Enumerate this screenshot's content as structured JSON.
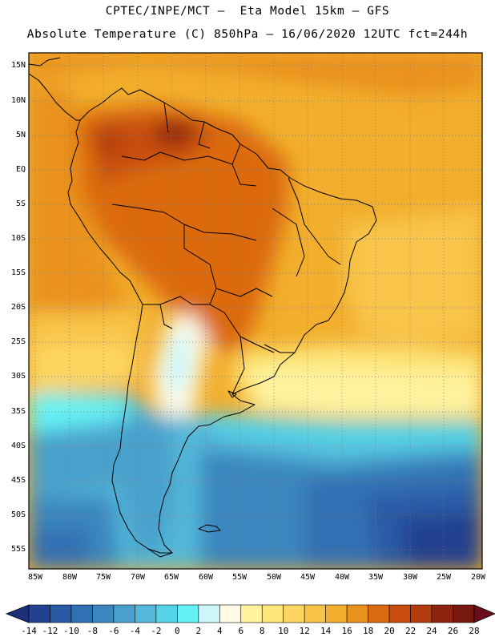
{
  "header": {
    "line1": "CPTEC/INPE/MCT –  Eta Model 15km – GFS",
    "line2": "Absolute Temperature (C) 850hPa – 16/06/2020 12UTC fct=244h"
  },
  "map": {
    "lat_labels": [
      "15N",
      "10N",
      "5N",
      "EQ",
      "5S",
      "10S",
      "15S",
      "20S",
      "25S",
      "30S",
      "35S",
      "40S",
      "45S",
      "50S",
      "55S"
    ],
    "lon_labels": [
      "85W",
      "80W",
      "75W",
      "70W",
      "65W",
      "60W",
      "55W",
      "50W",
      "45W",
      "40W",
      "35W",
      "30W",
      "25W",
      "20W"
    ]
  },
  "colorbar": {
    "labels": [
      "-14",
      "-12",
      "-10",
      "-8",
      "-6",
      "-4",
      "-2",
      "0",
      "2",
      "4",
      "6",
      "8",
      "10",
      "12",
      "14",
      "16",
      "18",
      "20",
      "22",
      "24",
      "26",
      "28"
    ],
    "colors": [
      "#22418f",
      "#2a5aa5",
      "#3070b4",
      "#3b86bf",
      "#4aa0cc",
      "#53b8d9",
      "#55d2e6",
      "#66f2f4",
      "#ccf6fa",
      "#fffbe6",
      "#fff3a0",
      "#fde67a",
      "#fcd660",
      "#f8c448",
      "#f2ae2c",
      "#ea921e",
      "#dc6a10",
      "#c84d0d",
      "#b23c0e",
      "#8e2410",
      "#761810"
    ]
  }
}
